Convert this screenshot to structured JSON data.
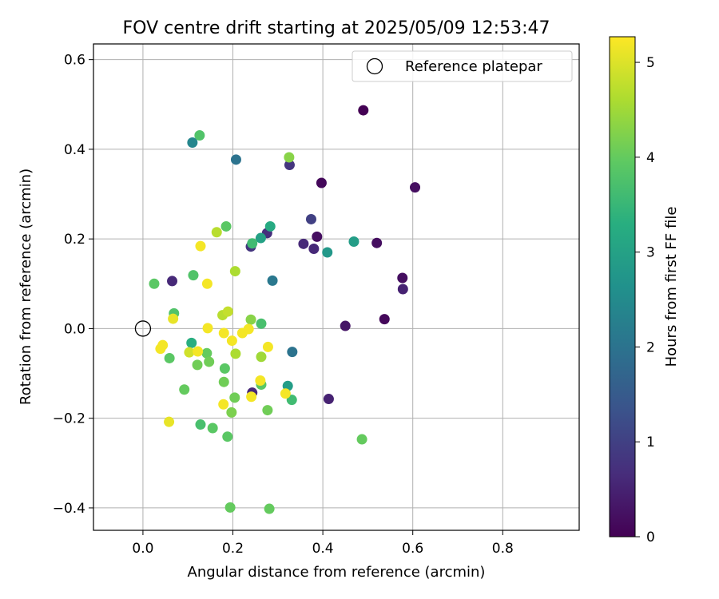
{
  "chart_data": {
    "type": "scatter",
    "title": "FOV centre drift starting at 2025/05/09 12:53:47",
    "xlabel": "Angular distance from reference (arcmin)",
    "ylabel": "Rotation from reference (arcmin)",
    "xlim": [
      -0.11,
      0.97
    ],
    "ylim": [
      -0.45,
      0.635
    ],
    "xticks": [
      0.0,
      0.2,
      0.4,
      0.6,
      0.8
    ],
    "xtick_labels": [
      "0.0",
      "0.2",
      "0.4",
      "0.6",
      "0.8"
    ],
    "yticks": [
      -0.4,
      -0.2,
      0.0,
      0.2,
      0.4,
      0.6
    ],
    "ytick_labels": [
      "−0.4",
      "−0.2",
      "0.0",
      "0.2",
      "0.4",
      "0.6"
    ],
    "grid": true,
    "legend": {
      "position": "top-right",
      "entries": [
        {
          "label": "Reference platepar",
          "marker": "open-circle"
        }
      ]
    },
    "reference_point": {
      "x": 0.0,
      "y": 0.0
    },
    "colorbar": {
      "label": "Hours from first FF file",
      "colormap": "viridis",
      "range": [
        0,
        5.27
      ],
      "ticks": [
        0,
        1,
        2,
        3,
        4,
        5
      ],
      "tick_labels": [
        "0",
        "1",
        "2",
        "3",
        "4",
        "5"
      ]
    },
    "points": [
      {
        "x": 0.49,
        "y": 0.487,
        "h": 0.0
      },
      {
        "x": 0.605,
        "y": 0.315,
        "h": 0.2
      },
      {
        "x": 0.397,
        "y": 0.325,
        "h": 0.1
      },
      {
        "x": 0.387,
        "y": 0.205,
        "h": 0.2
      },
      {
        "x": 0.52,
        "y": 0.191,
        "h": 0.2
      },
      {
        "x": 0.577,
        "y": 0.113,
        "h": 0.2
      },
      {
        "x": 0.578,
        "y": 0.088,
        "h": 0.5
      },
      {
        "x": 0.537,
        "y": 0.021,
        "h": 0.1
      },
      {
        "x": 0.45,
        "y": 0.006,
        "h": 0.3
      },
      {
        "x": 0.413,
        "y": -0.157,
        "h": 0.5
      },
      {
        "x": 0.38,
        "y": 0.178,
        "h": 0.6
      },
      {
        "x": 0.357,
        "y": 0.189,
        "h": 0.6
      },
      {
        "x": 0.374,
        "y": 0.244,
        "h": 1.0
      },
      {
        "x": 0.326,
        "y": 0.365,
        "h": 0.8
      },
      {
        "x": 0.276,
        "y": 0.213,
        "h": 0.7
      },
      {
        "x": 0.24,
        "y": 0.183,
        "h": 0.8
      },
      {
        "x": 0.065,
        "y": 0.106,
        "h": 0.6
      },
      {
        "x": 0.243,
        "y": -0.143,
        "h": 0.6
      },
      {
        "x": 0.207,
        "y": 0.377,
        "h": 2.0
      },
      {
        "x": 0.11,
        "y": 0.415,
        "h": 2.4
      },
      {
        "x": 0.288,
        "y": 0.107,
        "h": 2.1
      },
      {
        "x": 0.332,
        "y": -0.052,
        "h": 2.0
      },
      {
        "x": 0.41,
        "y": 0.17,
        "h": 2.8
      },
      {
        "x": 0.469,
        "y": 0.194,
        "h": 2.9
      },
      {
        "x": 0.262,
        "y": 0.202,
        "h": 3.0
      },
      {
        "x": 0.283,
        "y": 0.228,
        "h": 3.2
      },
      {
        "x": 0.322,
        "y": -0.128,
        "h": 2.9
      },
      {
        "x": 0.108,
        "y": -0.032,
        "h": 3.3
      },
      {
        "x": 0.243,
        "y": 0.19,
        "h": 3.6
      },
      {
        "x": 0.263,
        "y": 0.011,
        "h": 3.7
      },
      {
        "x": 0.331,
        "y": -0.159,
        "h": 3.6
      },
      {
        "x": 0.263,
        "y": -0.125,
        "h": 3.9
      },
      {
        "x": 0.069,
        "y": 0.034,
        "h": 3.8
      },
      {
        "x": 0.126,
        "y": 0.431,
        "h": 3.8
      },
      {
        "x": 0.185,
        "y": 0.228,
        "h": 3.9
      },
      {
        "x": 0.112,
        "y": 0.119,
        "h": 3.8
      },
      {
        "x": 0.025,
        "y": 0.1,
        "h": 3.9
      },
      {
        "x": 0.059,
        "y": -0.066,
        "h": 3.9
      },
      {
        "x": 0.128,
        "y": -0.214,
        "h": 3.7
      },
      {
        "x": 0.155,
        "y": -0.222,
        "h": 3.9
      },
      {
        "x": 0.188,
        "y": -0.241,
        "h": 3.9
      },
      {
        "x": 0.092,
        "y": -0.136,
        "h": 4.0
      },
      {
        "x": 0.121,
        "y": -0.081,
        "h": 4.1
      },
      {
        "x": 0.142,
        "y": -0.055,
        "h": 4.0
      },
      {
        "x": 0.147,
        "y": -0.074,
        "h": 4.1
      },
      {
        "x": 0.182,
        "y": -0.089,
        "h": 3.9
      },
      {
        "x": 0.18,
        "y": -0.119,
        "h": 4.1
      },
      {
        "x": 0.204,
        "y": -0.154,
        "h": 4.1
      },
      {
        "x": 0.197,
        "y": -0.187,
        "h": 4.2
      },
      {
        "x": 0.277,
        "y": -0.182,
        "h": 4.1
      },
      {
        "x": 0.487,
        "y": -0.247,
        "h": 4.0
      },
      {
        "x": 0.194,
        "y": -0.399,
        "h": 4.0
      },
      {
        "x": 0.281,
        "y": -0.402,
        "h": 4.0
      },
      {
        "x": 0.325,
        "y": 0.382,
        "h": 4.3
      },
      {
        "x": 0.24,
        "y": 0.02,
        "h": 4.3
      },
      {
        "x": 0.263,
        "y": -0.063,
        "h": 4.5
      },
      {
        "x": 0.205,
        "y": 0.128,
        "h": 4.6
      },
      {
        "x": 0.164,
        "y": 0.215,
        "h": 4.7
      },
      {
        "x": 0.206,
        "y": -0.056,
        "h": 4.6
      },
      {
        "x": 0.177,
        "y": 0.03,
        "h": 4.7
      },
      {
        "x": 0.189,
        "y": 0.038,
        "h": 4.8
      },
      {
        "x": 0.103,
        "y": -0.053,
        "h": 4.9
      },
      {
        "x": 0.067,
        "y": 0.022,
        "h": 5.1
      },
      {
        "x": 0.128,
        "y": 0.184,
        "h": 5.2
      },
      {
        "x": 0.143,
        "y": 0.1,
        "h": 5.2
      },
      {
        "x": 0.144,
        "y": 0.001,
        "h": 5.2
      },
      {
        "x": 0.18,
        "y": -0.01,
        "h": 5.2
      },
      {
        "x": 0.198,
        "y": -0.027,
        "h": 5.2
      },
      {
        "x": 0.221,
        "y": -0.01,
        "h": 5.2
      },
      {
        "x": 0.235,
        "y": -0.001,
        "h": 5.2
      },
      {
        "x": 0.122,
        "y": -0.051,
        "h": 5.2
      },
      {
        "x": 0.044,
        "y": -0.037,
        "h": 5.2
      },
      {
        "x": 0.039,
        "y": -0.045,
        "h": 5.2
      },
      {
        "x": 0.058,
        "y": -0.208,
        "h": 5.1
      },
      {
        "x": 0.179,
        "y": -0.169,
        "h": 5.2
      },
      {
        "x": 0.241,
        "y": -0.152,
        "h": 5.2
      },
      {
        "x": 0.261,
        "y": -0.116,
        "h": 5.2
      },
      {
        "x": 0.278,
        "y": -0.041,
        "h": 5.2
      },
      {
        "x": 0.317,
        "y": -0.145,
        "h": 5.2
      }
    ]
  }
}
